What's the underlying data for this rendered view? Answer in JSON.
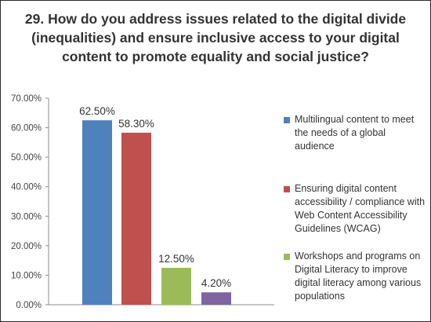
{
  "chart_data": {
    "type": "bar",
    "title": "29. How do you address issues related to the digital divide (inequalities) and ensure inclusive access to your digital content to promote equality and social justice?",
    "xlabel": "",
    "ylabel": "",
    "ylim": [
      0,
      70
    ],
    "y_ticks": [
      "0.00%",
      "10.00%",
      "20.00%",
      "30.00%",
      "40.00%",
      "50.00%",
      "60.00%",
      "70.00%"
    ],
    "grid": false,
    "legend_position": "right",
    "series": [
      {
        "name": "Multilingual content to meet the needs of a global audience",
        "value": 62.5,
        "label": "62.50%",
        "color": "#4f81bd"
      },
      {
        "name": "Ensuring digital content accessibility / compliance with Web Content Accessibility Guidelines (WCAG)",
        "value": 58.3,
        "label": "58.30%",
        "color": "#c0504d"
      },
      {
        "name": "Workshops and programs on Digital Literacy to improve digital literacy among various populations",
        "value": 12.5,
        "label": "12.50%",
        "color": "#9bbb59"
      },
      {
        "name": "",
        "value": 4.2,
        "label": "4.20%",
        "color": "#8064a2"
      }
    ]
  }
}
